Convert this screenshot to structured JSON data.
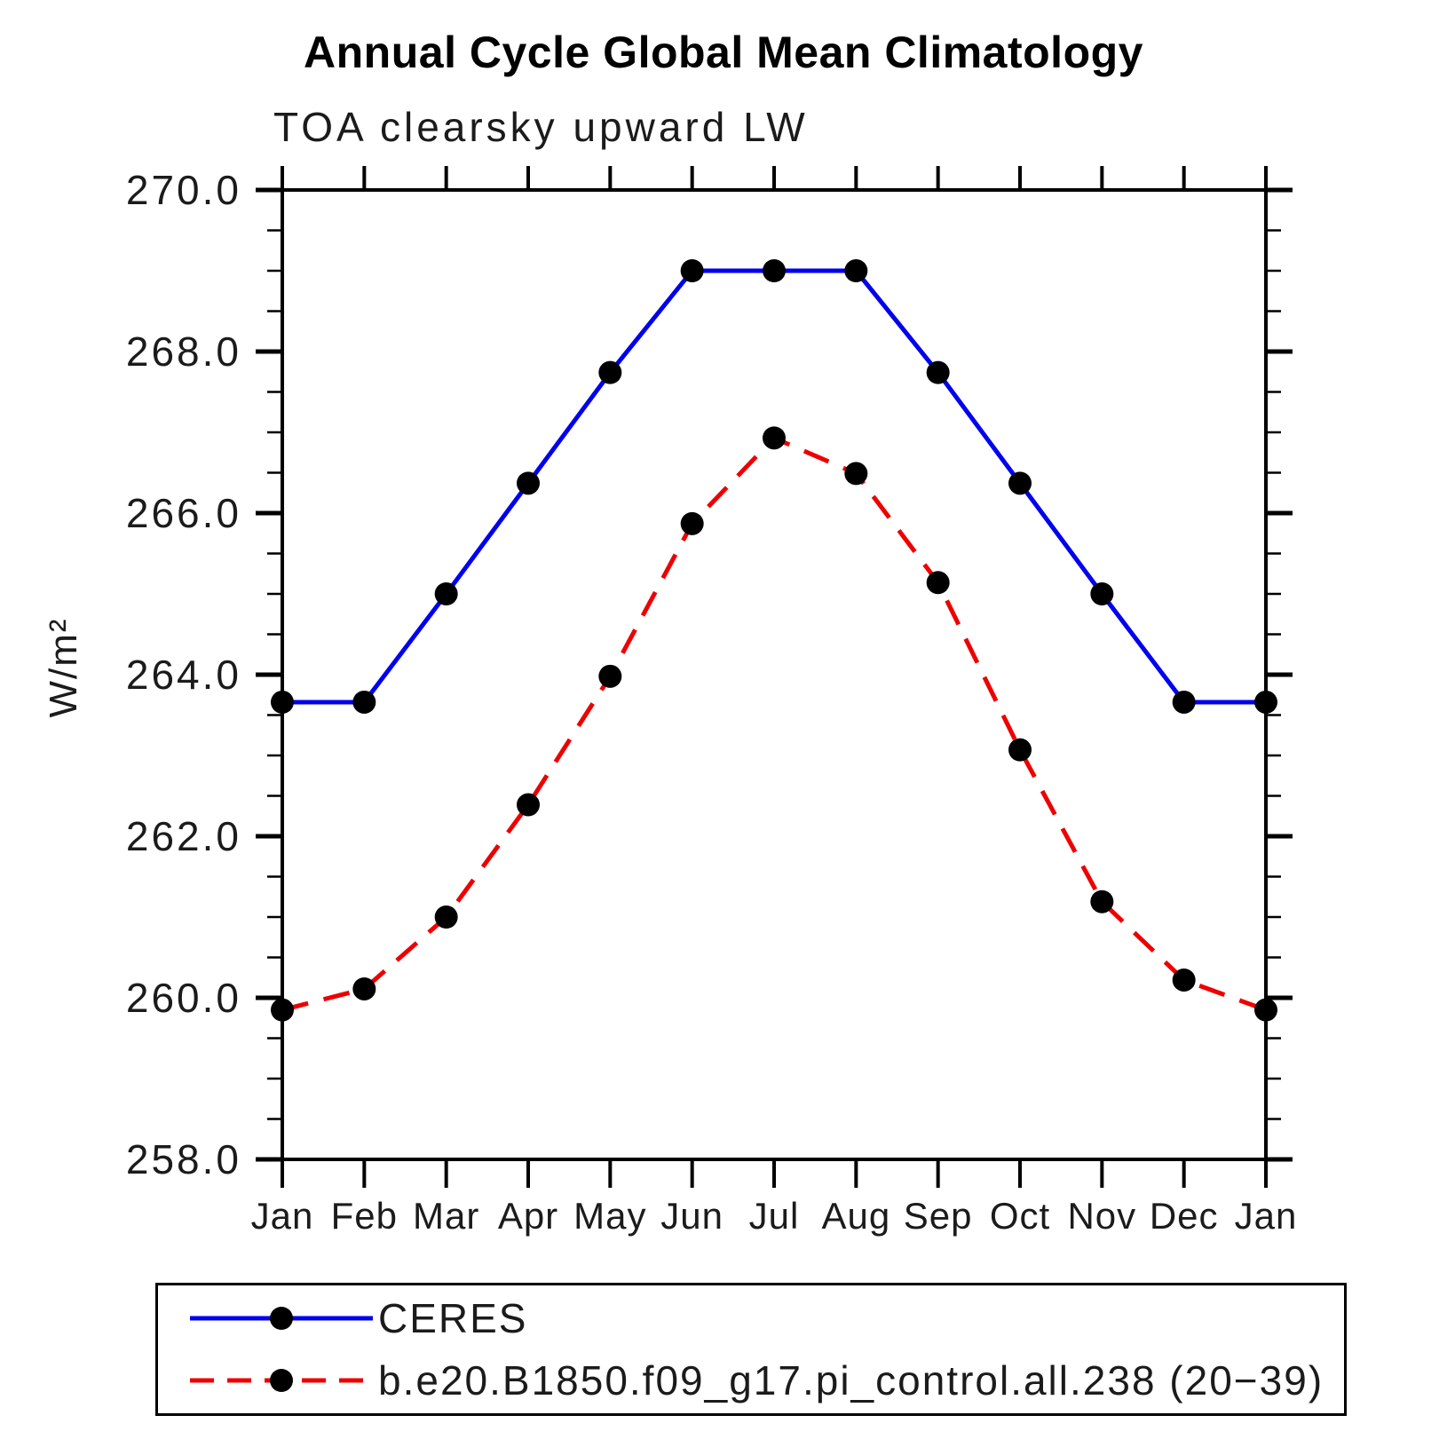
{
  "title": "Annual Cycle Global Mean Climatology",
  "chart_data": {
    "type": "line",
    "title": "Annual Cycle Global Mean Climatology",
    "subtitle": "TOA clearsky upward LW",
    "ylabel": "W/m²",
    "xlabel": "",
    "ylim": [
      258.0,
      270.0
    ],
    "ytick_interval": 2.0,
    "yminor_interval": 0.5,
    "ytick_labels": [
      "258.0",
      "260.0",
      "262.0",
      "264.0",
      "266.0",
      "268.0",
      "270.0"
    ],
    "categories": [
      "Jan",
      "Feb",
      "Mar",
      "Apr",
      "May",
      "Jun",
      "Jul",
      "Aug",
      "Sep",
      "Oct",
      "Nov",
      "Dec",
      "Jan"
    ],
    "grid": false,
    "legend_position": "bottom",
    "axis_color": "#000000",
    "series": [
      {
        "name": "CERES",
        "color": "#0000ee",
        "line_style": "solid",
        "marker": "filled-circle",
        "marker_color": "#000000",
        "values": [
          263.66,
          263.66,
          265.0,
          266.37,
          267.74,
          269.0,
          269.0,
          269.0,
          267.74,
          266.37,
          265.0,
          263.66,
          263.66
        ]
      },
      {
        "name": "b.e20.B1850.f09_g17.pi_control.all.238 (20−39)",
        "color": "#ee0000",
        "line_style": "dashed",
        "marker": "filled-circle",
        "marker_color": "#000000",
        "values": [
          259.85,
          260.11,
          261.0,
          262.39,
          263.98,
          265.87,
          266.93,
          266.49,
          265.14,
          263.07,
          261.19,
          260.22,
          259.85
        ]
      }
    ]
  }
}
